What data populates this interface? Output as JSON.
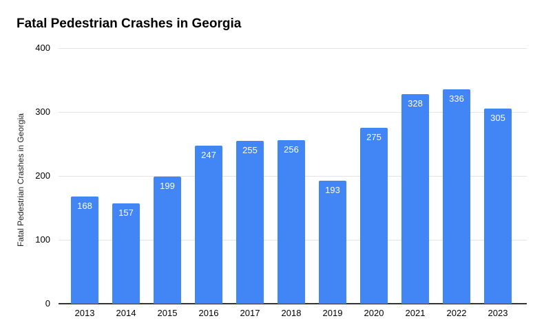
{
  "title": "Fatal Pedestrian Crashes in Georgia",
  "chart_data": {
    "type": "bar",
    "title": "Fatal Pedestrian Crashes in Georgia",
    "categories": [
      "2013",
      "2014",
      "2015",
      "2016",
      "2017",
      "2018",
      "2019",
      "2020",
      "2021",
      "2022",
      "2023"
    ],
    "values": [
      168,
      157,
      199,
      247,
      255,
      256,
      193,
      275,
      328,
      336,
      305
    ],
    "xlabel": "",
    "ylabel": "Fatal Pedestrian Crashes in Georgia",
    "ylim": [
      0,
      400
    ],
    "yticks": [
      0,
      100,
      200,
      300,
      400
    ],
    "grid": "horizontal",
    "legend": "none",
    "bar_color": "#4285f4",
    "value_label_color": "#ffffff",
    "gridline_color": "#e3e3e3",
    "axis_line_color": "#333333"
  }
}
